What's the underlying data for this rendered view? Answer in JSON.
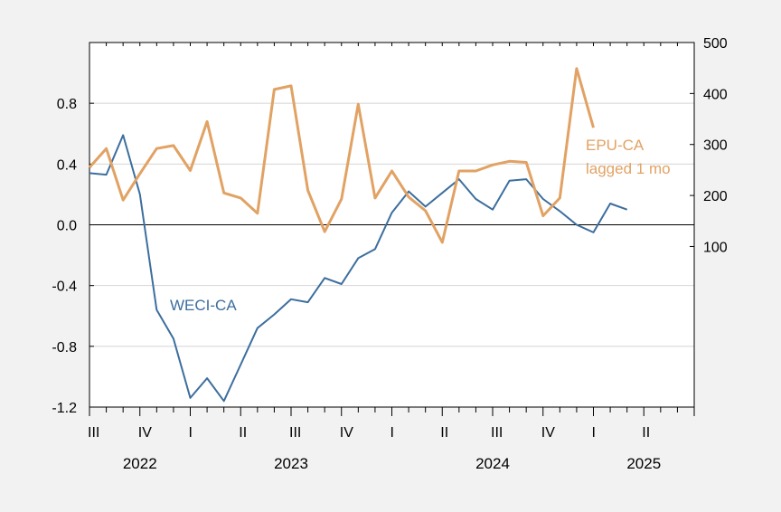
{
  "chart_data": {
    "type": "line",
    "x_monthly": [
      "2022-07",
      "2022-08",
      "2022-09",
      "2022-10",
      "2022-11",
      "2022-12",
      "2023-01",
      "2023-02",
      "2023-03",
      "2023-04",
      "2023-05",
      "2023-06",
      "2023-07",
      "2023-08",
      "2023-09",
      "2023-10",
      "2023-11",
      "2023-12",
      "2024-01",
      "2024-02",
      "2024-03",
      "2024-04",
      "2024-05",
      "2024-06",
      "2024-07",
      "2024-08",
      "2024-09",
      "2024-10",
      "2024-11",
      "2024-12",
      "2025-01",
      "2025-02",
      "2025-03",
      "2025-04",
      "2025-05",
      "2025-06"
    ],
    "series": [
      {
        "name": "WECI-CA",
        "axis": "left",
        "color": "#3c6e9e",
        "values": [
          0.34,
          0.33,
          0.59,
          0.2,
          -0.56,
          -0.75,
          -1.14,
          -1.01,
          -1.16,
          -0.92,
          -0.68,
          -0.59,
          -0.49,
          -0.51,
          -0.35,
          -0.39,
          -0.22,
          -0.16,
          0.08,
          0.22,
          0.12,
          0.21,
          0.3,
          0.17,
          0.1,
          0.29,
          0.3,
          0.17,
          0.09,
          0.0,
          -0.05,
          0.14,
          0.1,
          null,
          null,
          null
        ]
      },
      {
        "name": "EPU-CA lagged 1 mo",
        "axis": "right",
        "color": "#e1a263",
        "values": [
          255,
          292,
          191,
          243,
          292,
          298,
          249,
          345,
          205,
          195,
          165,
          408,
          415,
          210,
          129,
          193,
          379,
          195,
          248,
          197,
          170,
          108,
          248,
          248,
          260,
          267,
          265,
          160,
          195,
          449,
          333,
          null,
          null,
          null,
          null,
          null
        ]
      }
    ],
    "left_axis": {
      "ylim": [
        -1.2,
        1.2
      ],
      "ticks": [
        -1.2,
        -0.8,
        -0.4,
        0.0,
        0.4,
        0.8
      ],
      "tick_labels": [
        "-1.2",
        "-0.8",
        "-0.4",
        "0.0",
        "0.4",
        "0.8"
      ]
    },
    "right_axis": {
      "ylim": [
        -215,
        500
      ],
      "ticks": [
        100,
        200,
        300,
        400,
        500
      ],
      "tick_labels": [
        "100",
        "200",
        "300",
        "400",
        "500"
      ]
    },
    "x_axis": {
      "quarter_labels": [
        "III",
        "IV",
        "I",
        "II",
        "III",
        "IV",
        "I",
        "II",
        "III",
        "IV",
        "I",
        "II"
      ],
      "year_labels": [
        "2022",
        "2023",
        "2024",
        "2025"
      ]
    },
    "annotations": {
      "weci": "WECI-CA",
      "epu_line1": "EPU-CA",
      "epu_line2": "lagged 1 mo"
    },
    "grid": true,
    "zero_line": true
  }
}
